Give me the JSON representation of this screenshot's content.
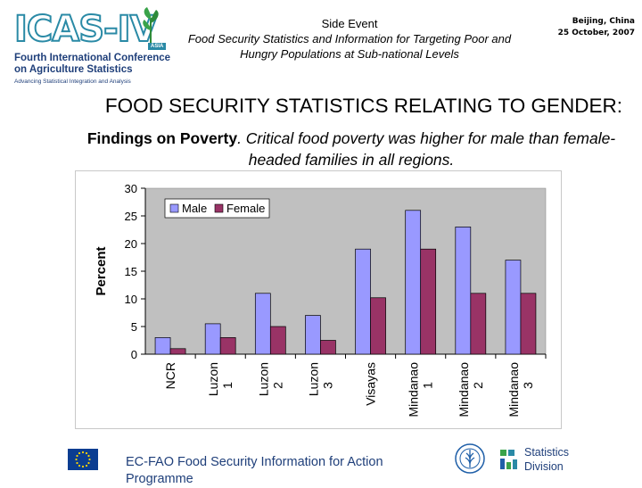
{
  "header": {
    "logo_brand": "ICAS-IV",
    "logo_badge": "ASIA",
    "logo_line1": "Fourth International Conference",
    "logo_line2": "on Agriculture Statistics",
    "logo_tagline": "Advancing Statistical Integration and Analysis",
    "event_title": "Side Event",
    "event_desc": "Food Security Statistics and Information for Targeting Poor and Hungry Populations at Sub-national Levels",
    "city": "Beijing, China",
    "date": "25 October, 2007"
  },
  "slide": {
    "heading": "FOOD SECURITY STATISTICS RELATING TO GENDER:",
    "findings_lead": "Findings on Poverty",
    "findings_text": ". Critical food poverty was higher for male than female-headed families in all regions."
  },
  "chart_data": {
    "type": "bar",
    "categories": [
      "NCR",
      "Luzon 1",
      "Luzon 2",
      "Luzon 3",
      "Visayas",
      "Mindanao 1",
      "Mindanao 2",
      "Mindanao 3"
    ],
    "series": [
      {
        "name": "Male",
        "values": [
          3,
          5.5,
          11,
          7,
          19,
          26,
          23,
          17
        ],
        "color": "#9999ff"
      },
      {
        "name": "Female",
        "values": [
          1,
          3,
          5,
          2.5,
          10.2,
          19,
          11,
          11
        ],
        "color": "#993366"
      }
    ],
    "ylabel": "Percent",
    "xlabel": "",
    "ylim": [
      0,
      30
    ],
    "yticks": [
      0,
      5,
      10,
      15,
      20,
      25,
      30
    ],
    "grid": false,
    "legend": "top-left",
    "plot_background": "#c0c0c0"
  },
  "footer": {
    "program": "EC-FAO Food Security Information for Action Programme",
    "stats_line1": "Statistics",
    "stats_line2": "Division"
  }
}
